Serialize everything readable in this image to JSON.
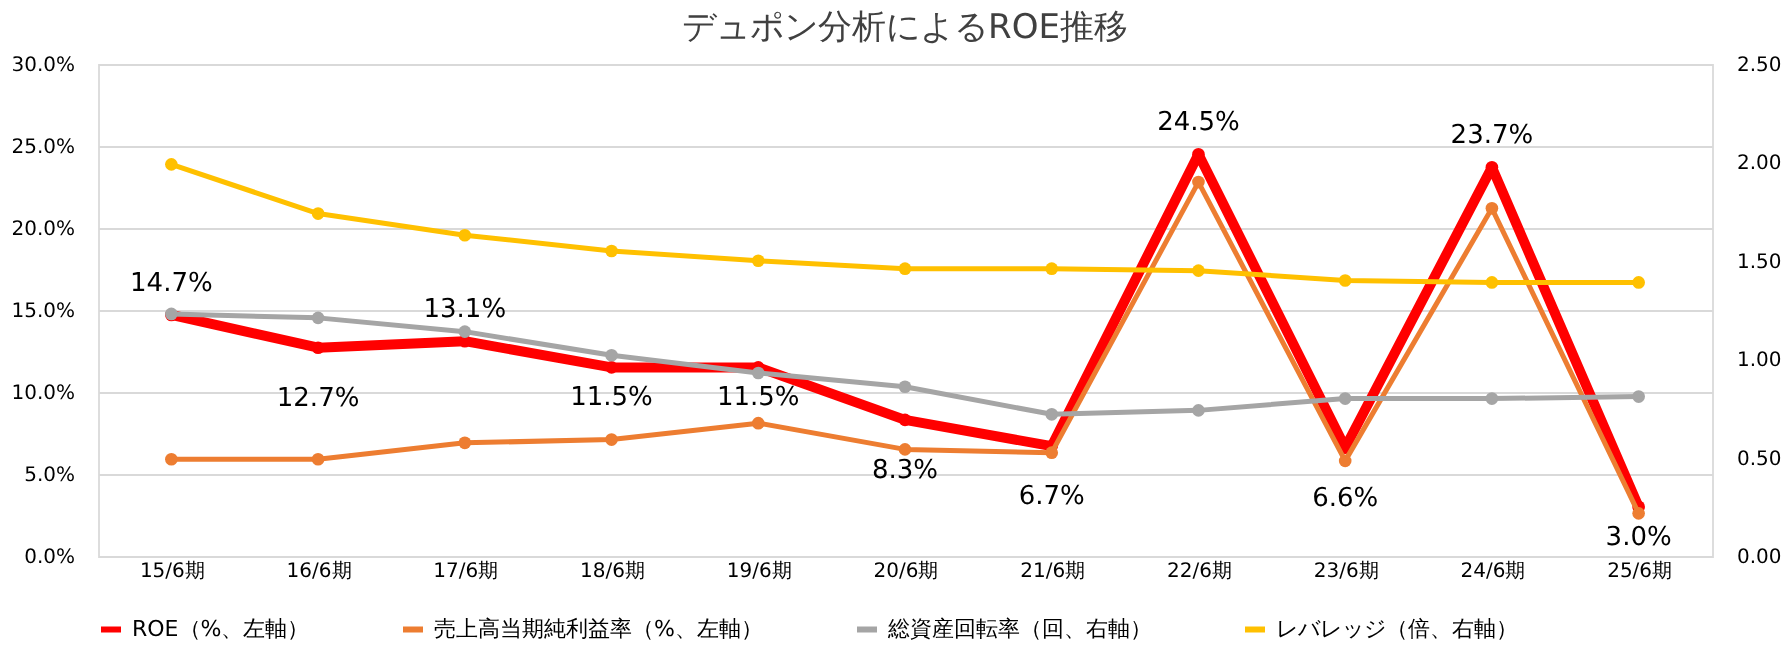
{
  "chart_data": {
    "type": "line",
    "title": "デュポン分析によるROE推移",
    "categories": [
      "15/6期",
      "16/6期",
      "17/6期",
      "18/6期",
      "19/6期",
      "20/6期",
      "21/6期",
      "22/6期",
      "23/6期",
      "24/6期",
      "25/6期"
    ],
    "series": [
      {
        "name": "ROE（%、左軸）",
        "color": "#ff0000",
        "values": [
          14.7,
          12.7,
          13.1,
          11.5,
          11.5,
          8.3,
          6.7,
          24.5,
          6.6,
          23.7,
          3.0
        ],
        "value_labels": [
          "14.7%",
          "12.7%",
          "13.1%",
          "11.5%",
          "11.5%",
          "8.3%",
          "6.7%",
          "24.5%",
          "6.6%",
          "23.7%",
          "3.0%"
        ]
      },
      {
        "name": "売上高当期純利益率（%、左軸）",
        "color": "#ed7d31",
        "values": [
          5.9,
          5.9,
          6.9,
          7.1,
          8.1,
          6.5,
          6.3,
          22.8,
          5.8,
          21.2,
          2.6
        ]
      },
      {
        "name": "総資産回転率（回、右軸）",
        "color": "#a5a5a5",
        "axis": "y2",
        "values": [
          1.23,
          1.21,
          1.14,
          1.02,
          0.93,
          0.86,
          0.72,
          0.74,
          0.8,
          0.8,
          0.81
        ]
      },
      {
        "name": "レバレッジ（倍、右軸）",
        "color": "#ffc000",
        "axis": "y2",
        "values": [
          1.99,
          1.74,
          1.63,
          1.55,
          1.5,
          1.46,
          1.46,
          1.45,
          1.4,
          1.39,
          1.39
        ]
      }
    ],
    "ylim": [
      0,
      30
    ],
    "yticks": [
      {
        "value": 0,
        "label": "0.0%"
      },
      {
        "value": 5,
        "label": "5.0%"
      },
      {
        "value": 10,
        "label": "10.0%"
      },
      {
        "value": 15,
        "label": "15.0%"
      },
      {
        "value": 20,
        "label": "20.0%"
      },
      {
        "value": 25,
        "label": "25.0%"
      },
      {
        "value": 30,
        "label": "30.0%"
      }
    ],
    "y2lim": [
      0,
      2.5
    ],
    "y2ticks": [
      {
        "value": 0,
        "label": "0.00"
      },
      {
        "value": 0.5,
        "label": "0.50"
      },
      {
        "value": 1,
        "label": "1.00"
      },
      {
        "value": 1.5,
        "label": "1.50"
      },
      {
        "value": 2,
        "label": "2.00"
      },
      {
        "value": 2.5,
        "label": "2.50"
      }
    ],
    "grid": "y",
    "legend": "bottom",
    "marker": "circle",
    "line_style": "solid"
  }
}
